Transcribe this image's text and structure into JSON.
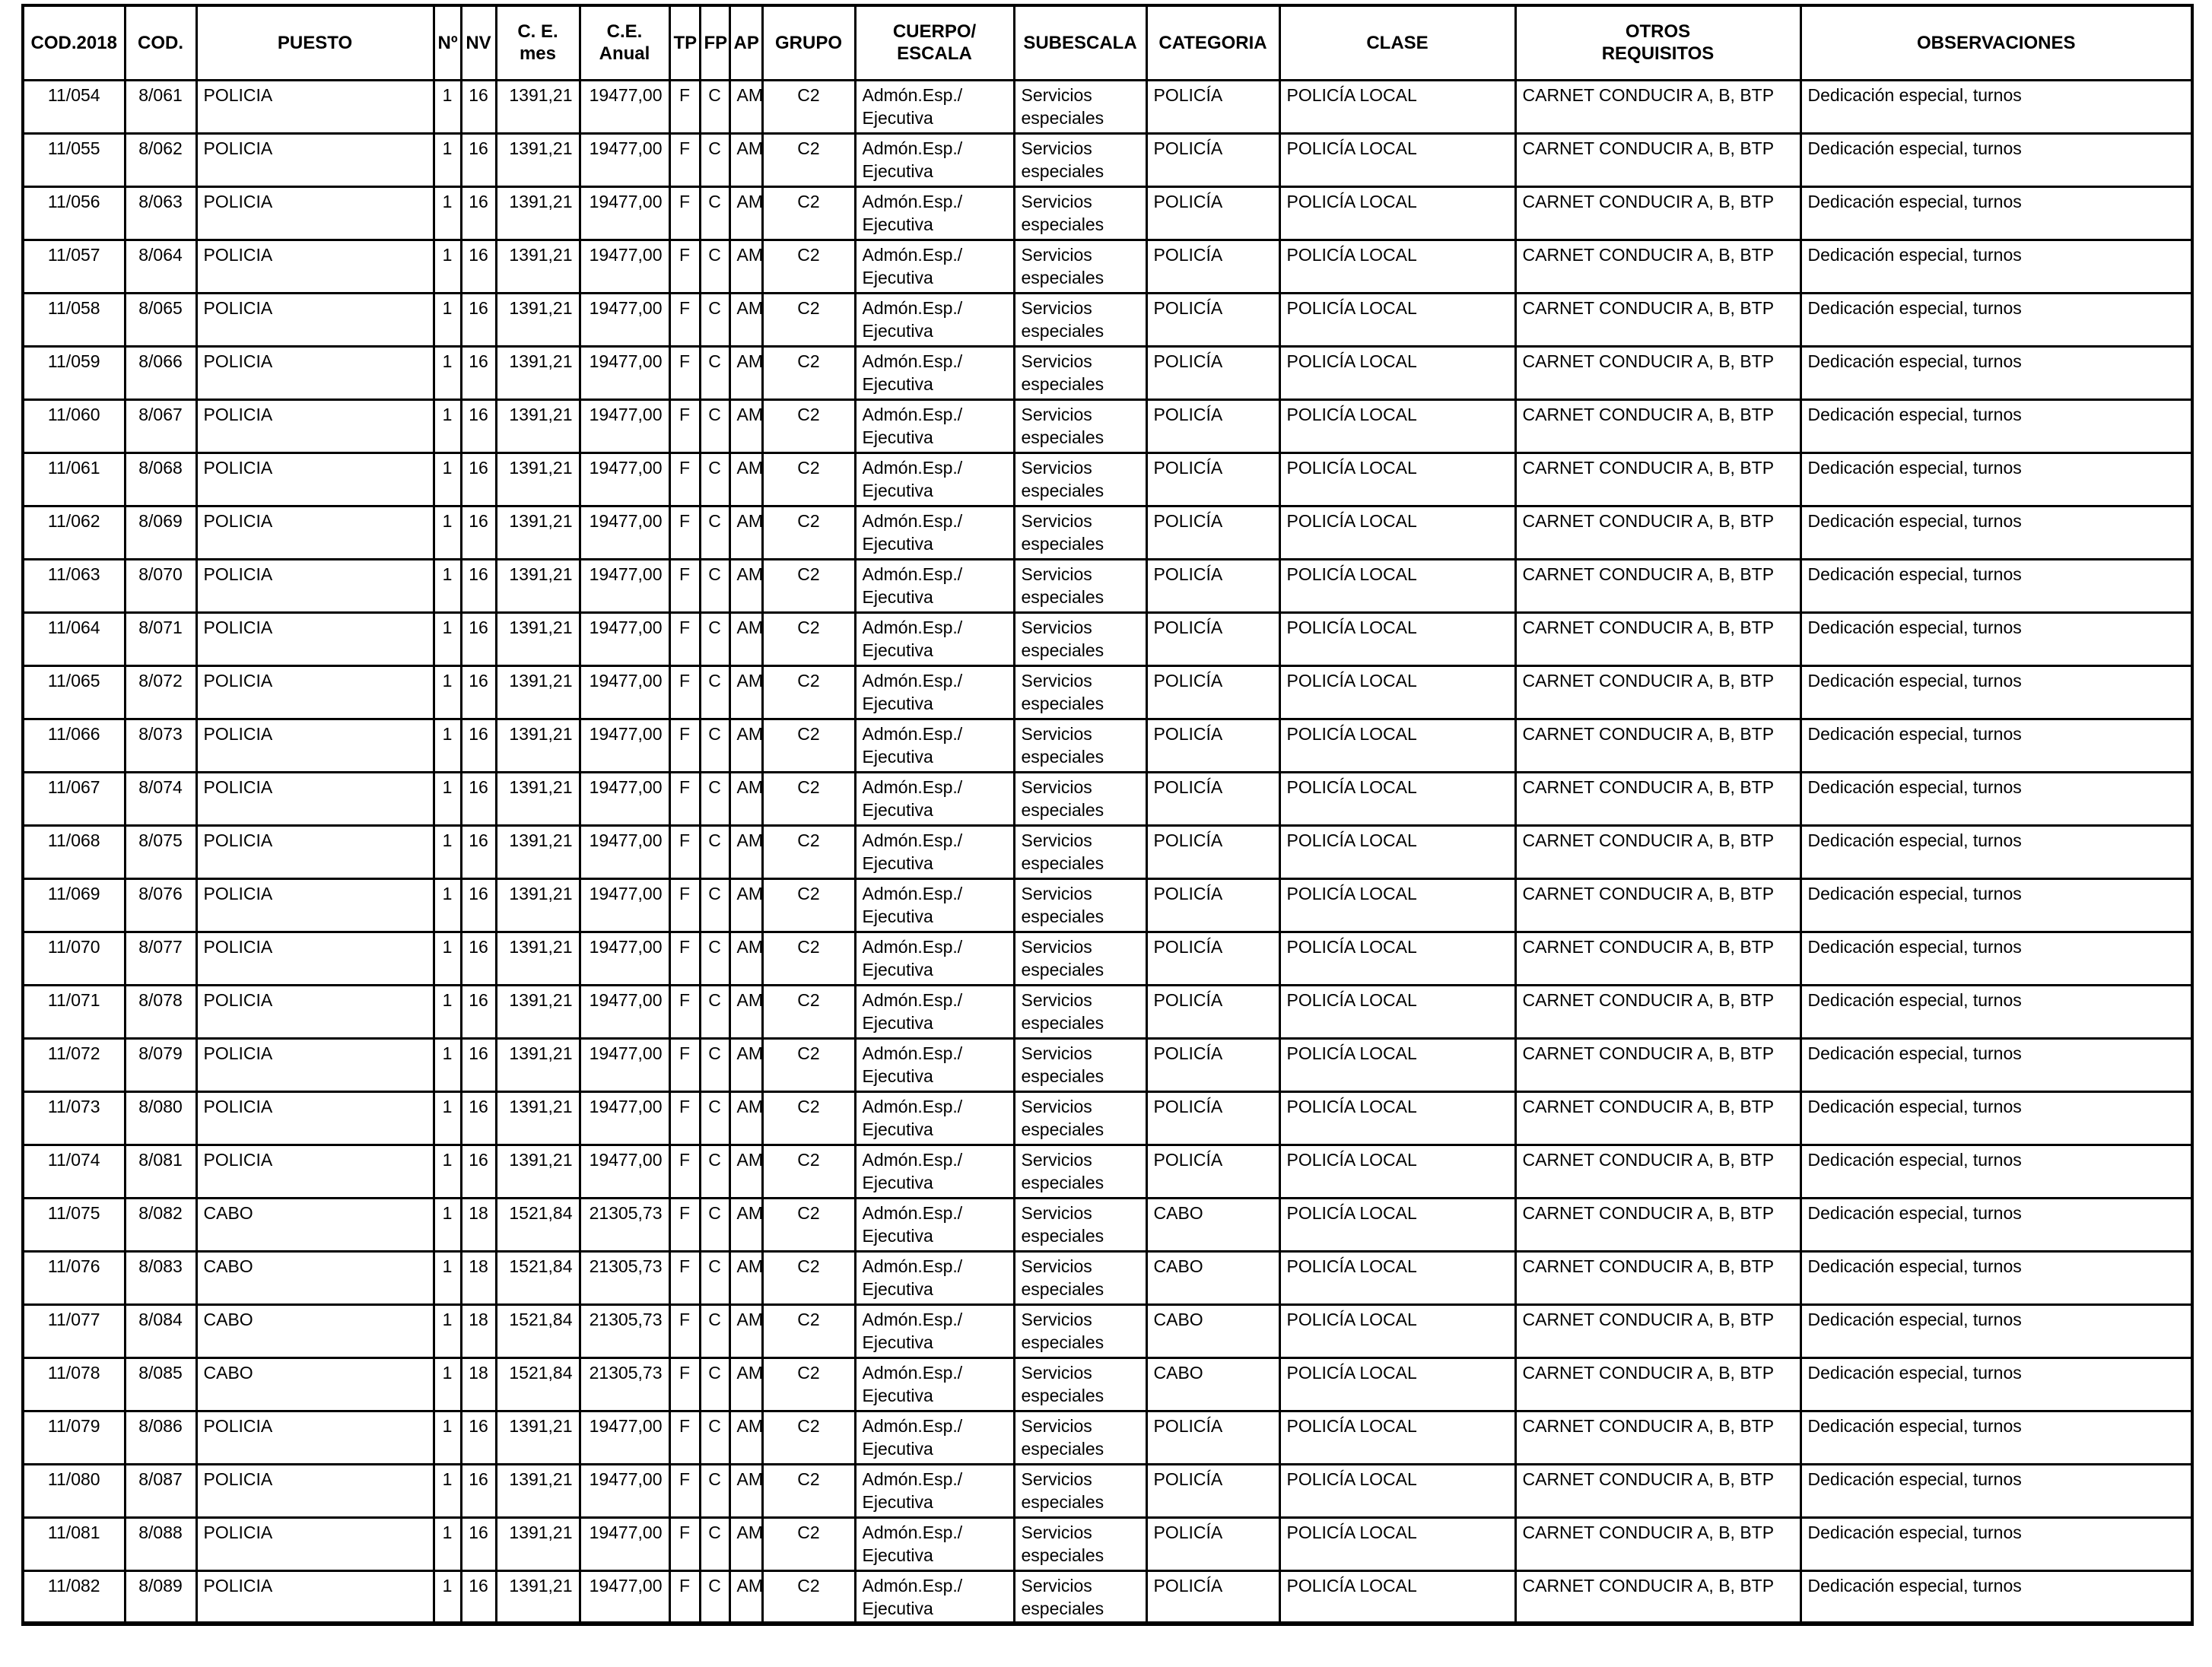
{
  "table": {
    "columns": [
      {
        "key": "cod2018",
        "label": "COD.2018"
      },
      {
        "key": "cod",
        "label": "COD."
      },
      {
        "key": "puesto",
        "label": "PUESTO"
      },
      {
        "key": "num",
        "label": "Nº"
      },
      {
        "key": "nv",
        "label": "NV"
      },
      {
        "key": "ce_mes",
        "label": "C. E.\nmes"
      },
      {
        "key": "ce_anual",
        "label": "C.E.\nAnual"
      },
      {
        "key": "tp",
        "label": "TP"
      },
      {
        "key": "fp",
        "label": "FP"
      },
      {
        "key": "ap",
        "label": "AP"
      },
      {
        "key": "grupo",
        "label": "GRUPO"
      },
      {
        "key": "cuerpo_escala",
        "label": "CUERPO/\nESCALA"
      },
      {
        "key": "subescala",
        "label": "SUBESCALA"
      },
      {
        "key": "categoria",
        "label": "CATEGORIA"
      },
      {
        "key": "clase",
        "label": "CLASE"
      },
      {
        "key": "otros_requisitos",
        "label": "OTROS\nREQUISITOS"
      },
      {
        "key": "observaciones",
        "label": "OBSERVACIONES"
      }
    ],
    "rows": [
      [
        "11/054",
        "8/061",
        "POLICIA",
        "1",
        "16",
        "1391,21",
        "19477,00",
        "F",
        "C",
        "AM",
        "C2",
        "Admón.Esp./\nEjecutiva",
        "Servicios\nespeciales",
        "POLICÍA",
        "POLICÍA LOCAL",
        "CARNET CONDUCIR A, B, BTP",
        "Dedicación especial, turnos"
      ],
      [
        "11/055",
        "8/062",
        "POLICIA",
        "1",
        "16",
        "1391,21",
        "19477,00",
        "F",
        "C",
        "AM",
        "C2",
        "Admón.Esp./\nEjecutiva",
        "Servicios\nespeciales",
        "POLICÍA",
        "POLICÍA LOCAL",
        "CARNET CONDUCIR A, B, BTP",
        "Dedicación especial, turnos"
      ],
      [
        "11/056",
        "8/063",
        "POLICIA",
        "1",
        "16",
        "1391,21",
        "19477,00",
        "F",
        "C",
        "AM",
        "C2",
        "Admón.Esp./\nEjecutiva",
        "Servicios\nespeciales",
        "POLICÍA",
        "POLICÍA LOCAL",
        "CARNET CONDUCIR A, B, BTP",
        "Dedicación especial, turnos"
      ],
      [
        "11/057",
        "8/064",
        "POLICIA",
        "1",
        "16",
        "1391,21",
        "19477,00",
        "F",
        "C",
        "AM",
        "C2",
        "Admón.Esp./\nEjecutiva",
        "Servicios\nespeciales",
        "POLICÍA",
        "POLICÍA LOCAL",
        "CARNET CONDUCIR A, B, BTP",
        "Dedicación especial, turnos"
      ],
      [
        "11/058",
        "8/065",
        "POLICIA",
        "1",
        "16",
        "1391,21",
        "19477,00",
        "F",
        "C",
        "AM",
        "C2",
        "Admón.Esp./\nEjecutiva",
        "Servicios\nespeciales",
        "POLICÍA",
        "POLICÍA LOCAL",
        "CARNET CONDUCIR A, B, BTP",
        "Dedicación especial, turnos"
      ],
      [
        "11/059",
        "8/066",
        "POLICIA",
        "1",
        "16",
        "1391,21",
        "19477,00",
        "F",
        "C",
        "AM",
        "C2",
        "Admón.Esp./\nEjecutiva",
        "Servicios\nespeciales",
        "POLICÍA",
        "POLICÍA LOCAL",
        "CARNET CONDUCIR A, B, BTP",
        "Dedicación especial, turnos"
      ],
      [
        "11/060",
        "8/067",
        "POLICIA",
        "1",
        "16",
        "1391,21",
        "19477,00",
        "F",
        "C",
        "AM",
        "C2",
        "Admón.Esp./\nEjecutiva",
        "Servicios\nespeciales",
        "POLICÍA",
        "POLICÍA LOCAL",
        "CARNET CONDUCIR A, B, BTP",
        "Dedicación especial, turnos"
      ],
      [
        "11/061",
        "8/068",
        "POLICIA",
        "1",
        "16",
        "1391,21",
        "19477,00",
        "F",
        "C",
        "AM",
        "C2",
        "Admón.Esp./\nEjecutiva",
        "Servicios\nespeciales",
        "POLICÍA",
        "POLICÍA LOCAL",
        "CARNET CONDUCIR A, B, BTP",
        "Dedicación especial, turnos"
      ],
      [
        "11/062",
        "8/069",
        "POLICIA",
        "1",
        "16",
        "1391,21",
        "19477,00",
        "F",
        "C",
        "AM",
        "C2",
        "Admón.Esp./\nEjecutiva",
        "Servicios\nespeciales",
        "POLICÍA",
        "POLICÍA LOCAL",
        "CARNET CONDUCIR A, B, BTP",
        "Dedicación especial, turnos"
      ],
      [
        "11/063",
        "8/070",
        "POLICIA",
        "1",
        "16",
        "1391,21",
        "19477,00",
        "F",
        "C",
        "AM",
        "C2",
        "Admón.Esp./\nEjecutiva",
        "Servicios\nespeciales",
        "POLICÍA",
        "POLICÍA LOCAL",
        "CARNET CONDUCIR A, B, BTP",
        "Dedicación especial, turnos"
      ],
      [
        "11/064",
        "8/071",
        "POLICIA",
        "1",
        "16",
        "1391,21",
        "19477,00",
        "F",
        "C",
        "AM",
        "C2",
        "Admón.Esp./\nEjecutiva",
        "Servicios\nespeciales",
        "POLICÍA",
        "POLICÍA LOCAL",
        "CARNET CONDUCIR A, B, BTP",
        "Dedicación especial, turnos"
      ],
      [
        "11/065",
        "8/072",
        "POLICIA",
        "1",
        "16",
        "1391,21",
        "19477,00",
        "F",
        "C",
        "AM",
        "C2",
        "Admón.Esp./\nEjecutiva",
        "Servicios\nespeciales",
        "POLICÍA",
        "POLICÍA LOCAL",
        "CARNET CONDUCIR A, B, BTP",
        "Dedicación especial, turnos"
      ],
      [
        "11/066",
        "8/073",
        "POLICIA",
        "1",
        "16",
        "1391,21",
        "19477,00",
        "F",
        "C",
        "AM",
        "C2",
        "Admón.Esp./\nEjecutiva",
        "Servicios\nespeciales",
        "POLICÍA",
        "POLICÍA LOCAL",
        "CARNET CONDUCIR A, B, BTP",
        "Dedicación especial, turnos"
      ],
      [
        "11/067",
        "8/074",
        "POLICIA",
        "1",
        "16",
        "1391,21",
        "19477,00",
        "F",
        "C",
        "AM",
        "C2",
        "Admón.Esp./\nEjecutiva",
        "Servicios\nespeciales",
        "POLICÍA",
        "POLICÍA LOCAL",
        "CARNET CONDUCIR A, B, BTP",
        "Dedicación especial, turnos"
      ],
      [
        "11/068",
        "8/075",
        "POLICIA",
        "1",
        "16",
        "1391,21",
        "19477,00",
        "F",
        "C",
        "AM",
        "C2",
        "Admón.Esp./\nEjecutiva",
        "Servicios\nespeciales",
        "POLICÍA",
        "POLICÍA LOCAL",
        "CARNET CONDUCIR A, B, BTP",
        "Dedicación especial, turnos"
      ],
      [
        "11/069",
        "8/076",
        "POLICIA",
        "1",
        "16",
        "1391,21",
        "19477,00",
        "F",
        "C",
        "AM",
        "C2",
        "Admón.Esp./\nEjecutiva",
        "Servicios\nespeciales",
        "POLICÍA",
        "POLICÍA LOCAL",
        "CARNET CONDUCIR A, B, BTP",
        "Dedicación especial, turnos"
      ],
      [
        "11/070",
        "8/077",
        "POLICIA",
        "1",
        "16",
        "1391,21",
        "19477,00",
        "F",
        "C",
        "AM",
        "C2",
        "Admón.Esp./\nEjecutiva",
        "Servicios\nespeciales",
        "POLICÍA",
        "POLICÍA LOCAL",
        "CARNET CONDUCIR A, B, BTP",
        "Dedicación especial, turnos"
      ],
      [
        "11/071",
        "8/078",
        "POLICIA",
        "1",
        "16",
        "1391,21",
        "19477,00",
        "F",
        "C",
        "AM",
        "C2",
        "Admón.Esp./\nEjecutiva",
        "Servicios\nespeciales",
        "POLICÍA",
        "POLICÍA LOCAL",
        "CARNET CONDUCIR A, B, BTP",
        "Dedicación especial, turnos"
      ],
      [
        "11/072",
        "8/079",
        "POLICIA",
        "1",
        "16",
        "1391,21",
        "19477,00",
        "F",
        "C",
        "AM",
        "C2",
        "Admón.Esp./\nEjecutiva",
        "Servicios\nespeciales",
        "POLICÍA",
        "POLICÍA LOCAL",
        "CARNET CONDUCIR A, B, BTP",
        "Dedicación especial, turnos"
      ],
      [
        "11/073",
        "8/080",
        "POLICIA",
        "1",
        "16",
        "1391,21",
        "19477,00",
        "F",
        "C",
        "AM",
        "C2",
        "Admón.Esp./\nEjecutiva",
        "Servicios\nespeciales",
        "POLICÍA",
        "POLICÍA LOCAL",
        "CARNET CONDUCIR A, B, BTP",
        "Dedicación especial, turnos"
      ],
      [
        "11/074",
        "8/081",
        "POLICIA",
        "1",
        "16",
        "1391,21",
        "19477,00",
        "F",
        "C",
        "AM",
        "C2",
        "Admón.Esp./\nEjecutiva",
        "Servicios\nespeciales",
        "POLICÍA",
        "POLICÍA LOCAL",
        "CARNET CONDUCIR A, B, BTP",
        "Dedicación especial, turnos"
      ],
      [
        "11/075",
        "8/082",
        "CABO",
        "1",
        "18",
        "1521,84",
        "21305,73",
        "F",
        "C",
        "AM",
        "C2",
        "Admón.Esp./\nEjecutiva",
        "Servicios\nespeciales",
        "CABO",
        "POLICÍA LOCAL",
        "CARNET CONDUCIR A, B, BTP",
        "Dedicación especial, turnos"
      ],
      [
        "11/076",
        "8/083",
        "CABO",
        "1",
        "18",
        "1521,84",
        "21305,73",
        "F",
        "C",
        "AM",
        "C2",
        "Admón.Esp./\nEjecutiva",
        "Servicios\nespeciales",
        "CABO",
        "POLICÍA LOCAL",
        "CARNET CONDUCIR A, B, BTP",
        "Dedicación especial, turnos"
      ],
      [
        "11/077",
        "8/084",
        "CABO",
        "1",
        "18",
        "1521,84",
        "21305,73",
        "F",
        "C",
        "AM",
        "C2",
        "Admón.Esp./\nEjecutiva",
        "Servicios\nespeciales",
        "CABO",
        "POLICÍA LOCAL",
        "CARNET CONDUCIR A, B, BTP",
        "Dedicación especial, turnos"
      ],
      [
        "11/078",
        "8/085",
        "CABO",
        "1",
        "18",
        "1521,84",
        "21305,73",
        "F",
        "C",
        "AM",
        "C2",
        "Admón.Esp./\nEjecutiva",
        "Servicios\nespeciales",
        "CABO",
        "POLICÍA LOCAL",
        "CARNET CONDUCIR A, B, BTP",
        "Dedicación especial, turnos"
      ],
      [
        "11/079",
        "8/086",
        "POLICIA",
        "1",
        "16",
        "1391,21",
        "19477,00",
        "F",
        "C",
        "AM",
        "C2",
        "Admón.Esp./\nEjecutiva",
        "Servicios\nespeciales",
        "POLICÍA",
        "POLICÍA LOCAL",
        "CARNET CONDUCIR A, B, BTP",
        "Dedicación especial, turnos"
      ],
      [
        "11/080",
        "8/087",
        "POLICIA",
        "1",
        "16",
        "1391,21",
        "19477,00",
        "F",
        "C",
        "AM",
        "C2",
        "Admón.Esp./\nEjecutiva",
        "Servicios\nespeciales",
        "POLICÍA",
        "POLICÍA LOCAL",
        "CARNET CONDUCIR A, B, BTP",
        "Dedicación especial, turnos"
      ],
      [
        "11/081",
        "8/088",
        "POLICIA",
        "1",
        "16",
        "1391,21",
        "19477,00",
        "F",
        "C",
        "AM",
        "C2",
        "Admón.Esp./\nEjecutiva",
        "Servicios\nespeciales",
        "POLICÍA",
        "POLICÍA LOCAL",
        "CARNET CONDUCIR A, B, BTP",
        "Dedicación especial, turnos"
      ],
      [
        "11/082",
        "8/089",
        "POLICIA",
        "1",
        "16",
        "1391,21",
        "19477,00",
        "F",
        "C",
        "AM",
        "C2",
        "Admón.Esp./\nEjecutiva",
        "Servicios\nespeciales",
        "POLICÍA",
        "POLICÍA LOCAL",
        "CARNET CONDUCIR A, B, BTP",
        "Dedicación especial, turnos"
      ]
    ]
  }
}
